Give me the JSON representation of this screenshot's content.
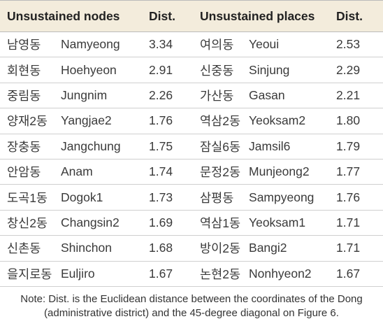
{
  "table": {
    "header": [
      "Unsustained nodes",
      "Dist.",
      "Unsustained places",
      "Dist."
    ],
    "rows": [
      [
        "남영동",
        "Namyeong",
        "3.34",
        "여의동",
        "Yeoui",
        "2.53"
      ],
      [
        "회현동",
        "Hoehyeon",
        "2.91",
        "신중동",
        "Sinjung",
        "2.29"
      ],
      [
        "중림동",
        "Jungnim",
        "2.26",
        "가산동",
        "Gasan",
        "2.21"
      ],
      [
        "양재2동",
        "Yangjae2",
        "1.76",
        "역삼2동",
        "Yeoksam2",
        "1.80"
      ],
      [
        "장충동",
        "Jangchung",
        "1.75",
        "잠실6동",
        "Jamsil6",
        "1.79"
      ],
      [
        "안암동",
        "Anam",
        "1.74",
        "문정2동",
        "Munjeong2",
        "1.77"
      ],
      [
        "도곡1동",
        "Dogok1",
        "1.73",
        "삼평동",
        "Sampyeong",
        "1.76"
      ],
      [
        "창신2동",
        "Changsin2",
        "1.69",
        "역삼1동",
        "Yeoksam1",
        "1.71"
      ],
      [
        "신촌동",
        "Shinchon",
        "1.68",
        "방이2동",
        "Bangi2",
        "1.71"
      ],
      [
        "을지로동",
        "Euljiro",
        "1.67",
        "논현2동",
        "Nonhyeon2",
        "1.67"
      ]
    ]
  },
  "note": "Note: Dist. is the Euclidean distance between the coordinates of the Dong (administrative district) and the 45-degree diagonal on Figure 6."
}
